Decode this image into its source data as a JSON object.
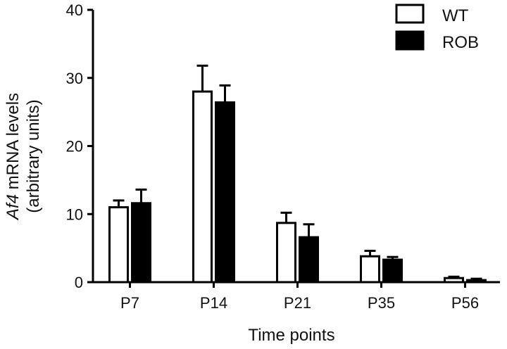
{
  "chart_data": {
    "type": "bar",
    "xlabel": "Time points",
    "ylabel_italic": "Af4",
    "ylabel_rest": " mRNA levels",
    "ylabel_line2": "(arbitrary units)",
    "categories": [
      "P7",
      "P14",
      "P21",
      "P35",
      "P56"
    ],
    "ylim": [
      0,
      40
    ],
    "yticks": [
      0,
      10,
      20,
      30,
      40
    ],
    "legend_position": "top-right",
    "grid": false,
    "series": [
      {
        "name": "WT",
        "fill": "#ffffff",
        "stroke": "#000000",
        "values": [
          11.0,
          28.0,
          8.7,
          3.8,
          0.6
        ],
        "errors": [
          1.0,
          3.8,
          1.5,
          0.8,
          0.2
        ]
      },
      {
        "name": "ROB",
        "fill": "#000000",
        "stroke": "#000000",
        "values": [
          11.6,
          26.4,
          6.6,
          3.3,
          0.3
        ],
        "errors": [
          2.0,
          2.5,
          1.9,
          0.4,
          0.2
        ]
      }
    ]
  }
}
